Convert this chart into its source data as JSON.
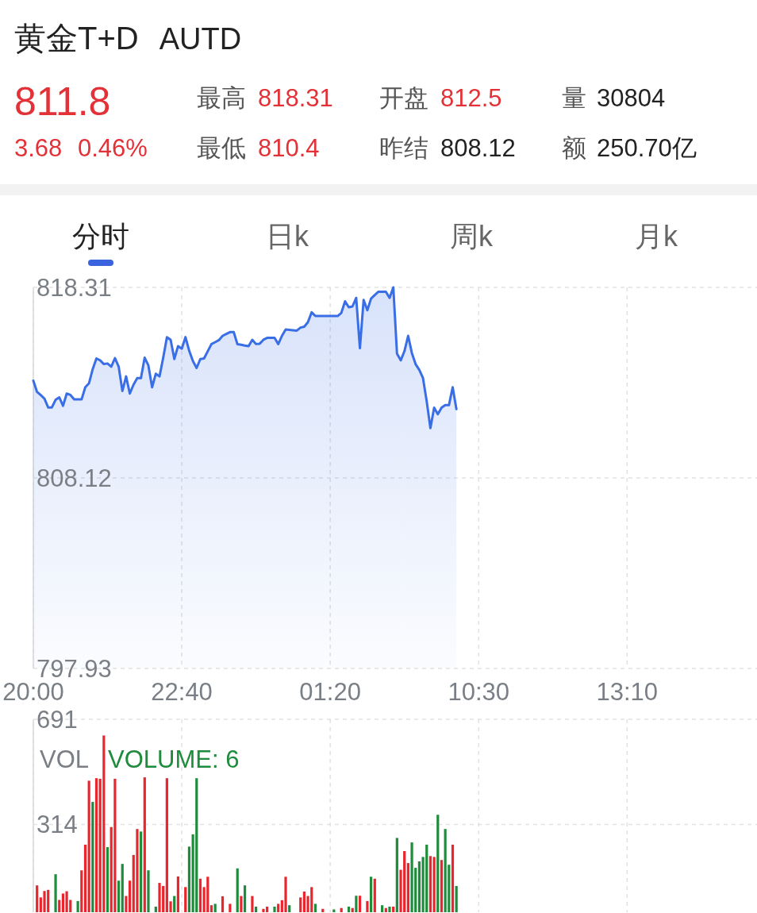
{
  "chart_data": [
    {
      "type": "other",
      "title": "黄金T+D",
      "subtitle": "AUTD",
      "annotations": [
        "811.8",
        "3.68",
        "0.46%",
        "最高",
        "818.31",
        "最低",
        "810.4",
        "开盘",
        "812.5",
        "昨结",
        "808.12",
        "量",
        "30804",
        "额",
        "250.70亿",
        "分时",
        "日k",
        "周k",
        "月k"
      ]
    },
    {
      "type": "area",
      "color": "#3a6ee6",
      "grid": true,
      "ylim": [
        797.93,
        818.31
      ],
      "yticks": [
        818.31,
        808.12,
        797.93
      ],
      "categories": [
        "20:00",
        null,
        null,
        null,
        null,
        null,
        null,
        null,
        null,
        null,
        null,
        null,
        null,
        null,
        null,
        null,
        null,
        null,
        null,
        null,
        null,
        null,
        null,
        null,
        null,
        null,
        null,
        null,
        null,
        null,
        null,
        null,
        null,
        null,
        null,
        null,
        null,
        null,
        null,
        null,
        "22:40",
        null,
        null,
        null,
        null,
        null,
        null,
        null,
        null,
        null,
        null,
        null,
        null,
        null,
        null,
        null,
        null,
        null,
        null,
        null,
        null,
        null,
        null,
        null,
        null,
        null,
        null,
        null,
        null,
        null,
        null,
        null,
        null,
        null,
        null,
        null,
        null,
        null,
        null,
        null,
        "01:20",
        null,
        null,
        null,
        null,
        null,
        null,
        null,
        null,
        null,
        null,
        null,
        null,
        null,
        null,
        null,
        null,
        null,
        null,
        null,
        null,
        null,
        null,
        null,
        null,
        null,
        null,
        null,
        null,
        null,
        null,
        null,
        null,
        null,
        null,
        null,
        null,
        null,
        null,
        null,
        "10:30",
        null,
        null,
        null,
        null,
        null,
        null,
        null,
        null,
        null,
        null,
        null,
        null,
        null,
        null,
        null,
        null,
        null,
        null,
        null,
        null,
        null,
        null,
        null,
        null,
        null,
        null,
        null,
        null,
        null,
        null,
        null,
        null,
        null,
        null,
        null,
        null,
        null,
        null,
        null,
        "13:10",
        null,
        null,
        null,
        null,
        null,
        null,
        null,
        null,
        null,
        null,
        null,
        null,
        null,
        null,
        null,
        null,
        null,
        null,
        null,
        null,
        null,
        null,
        null,
        null,
        null,
        null,
        null,
        null,
        null,
        null,
        null,
        null,
        null,
        null
      ],
      "values": [
        813.32,
        812.72,
        812.55,
        812.36,
        811.89,
        811.89,
        812.3,
        812.43,
        811.98,
        812.63,
        812.56,
        812.32,
        812.32,
        812.32,
        812.97,
        813.18,
        813.94,
        814.51,
        814.41,
        814.21,
        814.24,
        814.07,
        814.53,
        814.07,
        812.77,
        813.55,
        812.63,
        813.11,
        813.46,
        813.46,
        814.55,
        814.14,
        812.97,
        813.69,
        813.55,
        814.55,
        815.65,
        815.51,
        814.48,
        815.17,
        815.03,
        815.65,
        814.92,
        814.37,
        814.0,
        814.48,
        814.51,
        814.9,
        815.28,
        815.38,
        815.49,
        815.72,
        815.82,
        815.92,
        815.92,
        815.27,
        815.24,
        815.2,
        815.17,
        815.51,
        815.28,
        815.3,
        815.51,
        815.61,
        815.61,
        815.61,
        815.28,
        815.72,
        816.06,
        816.04,
        816.02,
        816.0,
        816.16,
        816.21,
        816.45,
        816.98,
        816.78,
        816.78,
        816.78,
        816.78,
        816.78,
        816.78,
        816.78,
        816.95,
        817.57,
        817.25,
        817.29,
        817.75,
        815.06,
        817.64,
        817.09,
        817.71,
        817.9,
        818.08,
        818.08,
        818.08,
        817.75,
        818.31,
        814.76,
        814.41,
        814.9,
        815.72,
        814.8,
        814.21,
        813.9,
        813.46,
        812.22,
        810.78,
        811.88,
        811.53,
        811.88,
        812.02,
        812.02,
        812.97,
        811.8,
        null,
        null,
        null,
        null,
        null,
        null,
        null,
        null,
        null,
        null,
        null,
        null,
        null,
        null,
        null,
        null,
        null,
        null,
        null,
        null,
        null,
        null,
        null,
        null,
        null,
        null,
        null,
        null,
        null,
        null,
        null,
        null,
        null,
        null,
        null,
        null,
        null,
        null,
        null,
        null,
        null,
        null,
        null,
        null,
        null,
        null,
        null,
        null,
        null,
        null,
        null,
        null,
        null,
        null,
        null,
        null,
        null,
        null,
        null,
        null,
        null,
        null,
        null,
        null,
        null,
        null,
        null,
        null,
        null,
        null,
        null,
        null,
        null,
        null,
        null,
        null,
        null,
        null,
        null,
        null
      ]
    },
    {
      "type": "bar",
      "title": "VOL",
      "annotations": [
        "VOLUME: 6"
      ],
      "grid": true,
      "ylim": [
        0,
        691
      ],
      "yticks": [
        691,
        314
      ],
      "categories": [
        null,
        null,
        null,
        null,
        null,
        null,
        null,
        null,
        null,
        null,
        null,
        null,
        null,
        null,
        null,
        null,
        null,
        null,
        null,
        null,
        null,
        null,
        null,
        null,
        null,
        null,
        null,
        null,
        null,
        null,
        null,
        null,
        null,
        null,
        null,
        null,
        null,
        null,
        null,
        null,
        null,
        null,
        null,
        null,
        null,
        null,
        null,
        null,
        null,
        null,
        null,
        null,
        null,
        null,
        null,
        null,
        null,
        null,
        null,
        null,
        null,
        null,
        null,
        null,
        null,
        null,
        null,
        null,
        null,
        null,
        null,
        null,
        null,
        null,
        null,
        null,
        null,
        null,
        null,
        null,
        null,
        null,
        null,
        null,
        null,
        null,
        null,
        null,
        null,
        null,
        null,
        null,
        null,
        null,
        null,
        null,
        null,
        null,
        null,
        null,
        null,
        null,
        null,
        null,
        null,
        null,
        null,
        null,
        null,
        null,
        null,
        null,
        null,
        null,
        null,
        null,
        null,
        null,
        null,
        null,
        null,
        null,
        null,
        null,
        null,
        null,
        null,
        null,
        null,
        null,
        null,
        null,
        null,
        null,
        null,
        null,
        null,
        null,
        null,
        null,
        null,
        null,
        null,
        null,
        null,
        null,
        null,
        null,
        null,
        null,
        null,
        null,
        null,
        null,
        null,
        null,
        null,
        null,
        null,
        null,
        null,
        null,
        null,
        null,
        null,
        null,
        null,
        null,
        null,
        null,
        null,
        null,
        null,
        null,
        null,
        null,
        null,
        null,
        null,
        null,
        null,
        null,
        null,
        null,
        null,
        null,
        null,
        null,
        null,
        null,
        null,
        null,
        null,
        null,
        null
      ],
      "values": [
        null,
        96,
        53,
        76,
        80,
        null,
        136,
        44,
        67,
        75,
        44,
        null,
        40,
        150,
        242,
        471,
        395,
        480,
        478,
        633,
        233,
        305,
        478,
        113,
        173,
        58,
        113,
        205,
        298,
        289,
        483,
        150,
        null,
        20,
        105,
        94,
        480,
        39,
        58,
        128,
        null,
        90,
        235,
        279,
        480,
        120,
        90,
        127,
        25,
        30,
        null,
        57,
        null,
        30,
        null,
        157,
        58,
        96,
        null,
        58,
        20,
        null,
        12,
        20,
        null,
        20,
        30,
        43,
        127,
        25,
        null,
        null,
        53,
        74,
        58,
        90,
        30,
        null,
        12,
        null,
        null,
        10,
        null,
        15,
        null,
        20,
        15,
        59,
        59,
        null,
        40,
        127,
        120,
        null,
        25,
        15,
        20,
        20,
        266,
        152,
        219,
        176,
        250,
        159,
        182,
        198,
        242,
        201,
        198,
        349,
        187,
        298,
        170,
        242,
        94,
        null,
        null,
        null,
        null,
        null,
        null,
        null,
        null,
        null,
        null,
        null,
        null,
        null,
        null,
        null,
        null,
        null,
        null,
        null,
        null,
        null,
        null,
        null,
        null,
        null,
        null,
        null,
        null,
        null,
        null,
        null,
        null,
        null,
        null,
        null,
        null,
        null,
        null,
        null,
        null,
        null,
        null,
        null,
        null,
        null,
        null,
        null,
        null,
        null,
        null,
        null,
        null,
        null,
        null,
        null,
        null,
        null,
        null,
        null,
        null,
        null,
        null,
        null,
        null,
        null,
        null,
        null,
        null,
        null,
        null,
        null,
        null,
        null,
        null,
        null,
        null,
        null,
        null,
        null,
        null
      ],
      "colors": [
        null,
        "#e8262d",
        "#e8262d",
        "#e8262d",
        "#e8262d",
        null,
        "#1f8b3c",
        "#e8262d",
        "#e8262d",
        "#e8262d",
        "#e8262d",
        null,
        "#1f8b3c",
        "#e8262d",
        "#e8262d",
        "#e8262d",
        "#1f8b3c",
        "#e8262d",
        "#e8262d",
        "#e8262d",
        "#1f8b3c",
        "#e8262d",
        "#e8262d",
        "#1f8b3c",
        "#1f8b3c",
        "#e8262d",
        "#e8262d",
        "#e8262d",
        "#e8262d",
        "#1f8b3c",
        "#e8262d",
        "#1f8b3c",
        null,
        "#1f8b3c",
        "#e8262d",
        "#e8262d",
        "#e8262d",
        "#e8262d",
        "#1f8b3c",
        "#e8262d",
        null,
        "#e8262d",
        "#1f8b3c",
        "#1f8b3c",
        "#1f8b3c",
        "#e8262d",
        "#e8262d",
        "#e8262d",
        "#e8262d",
        "#1f8b3c",
        null,
        "#e8262d",
        null,
        "#e8262d",
        null,
        "#1f8b3c",
        "#e8262d",
        "#1f8b3c",
        null,
        "#e8262d",
        "#1f8b3c",
        null,
        "#e8262d",
        "#e8262d",
        null,
        "#1f8b3c",
        "#e8262d",
        "#e8262d",
        "#e8262d",
        "#1f8b3c",
        null,
        null,
        "#e8262d",
        "#e8262d",
        "#e8262d",
        "#e8262d",
        "#1f8b3c",
        null,
        "#e8262d",
        null,
        null,
        "#1f8b3c",
        null,
        "#e8262d",
        null,
        "#1f8b3c",
        "#e8262d",
        "#1f8b3c",
        "#e8262d",
        null,
        "#e8262d",
        "#1f8b3c",
        "#e8262d",
        null,
        "#1f8b3c",
        "#e8262d",
        "#1f8b3c",
        "#e8262d",
        "#1f8b3c",
        "#e8262d",
        "#e8262d",
        "#e8262d",
        "#1f8b3c",
        "#1f8b3c",
        "#1f8b3c",
        "#1f8b3c",
        "#1f8b3c",
        "#e8262d",
        "#e8262d",
        "#1f8b3c",
        "#e8262d",
        "#1f8b3c",
        "#1f8b3c",
        "#e8262d",
        "#1f8b3c",
        null,
        null,
        null,
        null,
        null,
        null,
        null,
        null,
        null,
        null,
        null,
        null,
        null,
        null,
        null,
        null,
        null,
        null,
        null,
        null,
        null,
        null,
        null,
        null,
        null,
        null,
        null,
        null,
        null,
        null,
        null,
        null,
        null,
        null,
        null,
        null,
        null,
        null,
        null,
        null,
        null,
        null,
        null,
        null,
        null,
        null,
        null,
        null,
        null,
        null,
        null,
        null,
        null,
        null,
        null,
        null,
        null,
        null,
        null,
        null,
        null,
        null,
        null,
        null,
        null,
        null,
        null,
        null,
        null,
        null,
        null,
        null,
        null,
        null,
        null,
        null,
        null,
        null,
        null,
        null
      ]
    }
  ]
}
